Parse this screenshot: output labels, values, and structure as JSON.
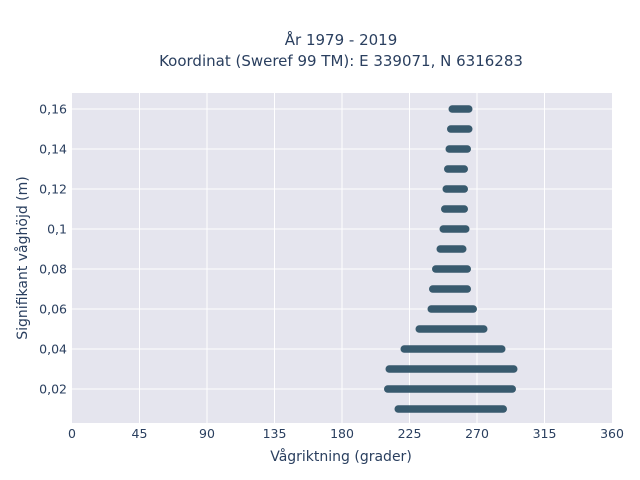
{
  "chart_data": {
    "type": "scatter",
    "title_line1": "År 1979 - 2019",
    "title_line2": "Koordinat (Sweref 99 TM): E 339071, N 6316283",
    "xlabel": "Vågriktning (grader)",
    "ylabel": "Signifikant våghöjd (m)",
    "xlim": [
      0,
      360
    ],
    "ylim": [
      0.003,
      0.168
    ],
    "x_ticks": [
      0,
      45,
      90,
      135,
      180,
      225,
      270,
      315,
      360
    ],
    "x_tick_labels": [
      "0",
      "45",
      "90",
      "135",
      "180",
      "225",
      "270",
      "315",
      "360"
    ],
    "y_ticks": [
      0.02,
      0.04,
      0.06,
      0.08,
      0.1,
      0.12,
      0.14,
      0.16
    ],
    "y_tick_labels": [
      "0,02",
      "0,04",
      "0,06",
      "0,08",
      "0,1",
      "0,12",
      "0,14",
      "0,16"
    ],
    "grid": true,
    "marker_color": "#2e5266",
    "plot_background": "#e5e5ee",
    "series": [
      {
        "bands": [
          {
            "y": 0.01,
            "x_min": 215,
            "x_max": 290
          },
          {
            "y": 0.02,
            "x_min": 208,
            "x_max": 296
          },
          {
            "y": 0.03,
            "x_min": 209,
            "x_max": 297
          },
          {
            "y": 0.04,
            "x_min": 219,
            "x_max": 289
          },
          {
            "y": 0.05,
            "x_min": 229,
            "x_max": 277
          },
          {
            "y": 0.06,
            "x_min": 237,
            "x_max": 270
          },
          {
            "y": 0.07,
            "x_min": 238,
            "x_max": 266
          },
          {
            "y": 0.08,
            "x_min": 240,
            "x_max": 266
          },
          {
            "y": 0.09,
            "x_min": 243,
            "x_max": 263
          },
          {
            "y": 0.1,
            "x_min": 245,
            "x_max": 265
          },
          {
            "y": 0.11,
            "x_min": 246,
            "x_max": 264
          },
          {
            "y": 0.12,
            "x_min": 247,
            "x_max": 264
          },
          {
            "y": 0.13,
            "x_min": 248,
            "x_max": 264
          },
          {
            "y": 0.14,
            "x_min": 249,
            "x_max": 266
          },
          {
            "y": 0.15,
            "x_min": 250,
            "x_max": 267
          },
          {
            "y": 0.16,
            "x_min": 251,
            "x_max": 267
          }
        ]
      }
    ]
  }
}
